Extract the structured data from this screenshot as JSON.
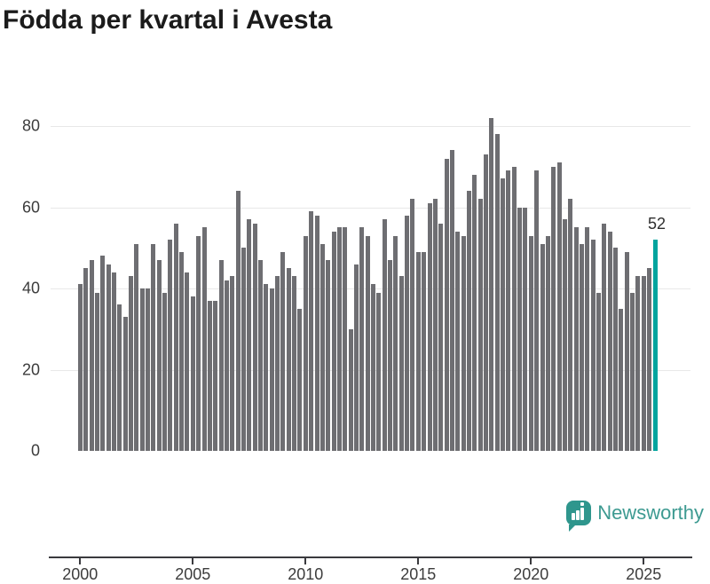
{
  "title": "Födda per kvartal i Avesta",
  "brand": {
    "name": "Newsworthy",
    "icon": "newsworthy-speech-bubble-bar-chart-icon"
  },
  "colors": {
    "bar": "#6e6e72",
    "highlight": "#00a49e",
    "grid": "#e8e8e8",
    "axis": "#3a3a3e",
    "tick_label": "#3c3c3c",
    "title": "#1b1b1b",
    "annotation": "#2e2e2e",
    "brand_teal": "#3d9a91"
  },
  "chart_data": {
    "type": "bar",
    "title": "Födda per kvartal i Avesta",
    "frequency": "quarterly",
    "start_period": "2000 Q1",
    "end_period": "2025 Q3",
    "values": [
      41,
      45,
      47,
      39,
      48,
      46,
      44,
      36,
      33,
      43,
      51,
      40,
      40,
      51,
      47,
      39,
      52,
      56,
      49,
      44,
      38,
      53,
      55,
      37,
      37,
      47,
      42,
      43,
      64,
      50,
      57,
      56,
      47,
      41,
      40,
      43,
      49,
      45,
      43,
      35,
      53,
      59,
      58,
      51,
      47,
      54,
      55,
      55,
      30,
      46,
      55,
      53,
      41,
      39,
      57,
      47,
      53,
      43,
      58,
      62,
      49,
      49,
      61,
      62,
      56,
      72,
      74,
      54,
      53,
      64,
      68,
      62,
      73,
      82,
      78,
      67,
      69,
      70,
      60,
      60,
      53,
      69,
      51,
      53,
      70,
      71,
      57,
      62,
      55,
      51,
      55,
      52,
      39,
      56,
      54,
      50,
      35,
      49,
      39,
      43,
      43,
      45,
      52
    ],
    "highlight_index": 102,
    "highlight_label": "52",
    "yticks": [
      0,
      20,
      40,
      60,
      80
    ],
    "xticks": [
      2000,
      2005,
      2010,
      2015,
      2020,
      2025
    ],
    "ylim": [
      0,
      84.8
    ],
    "grid": "horizontal-only",
    "legend": "none",
    "bar_color_default": "#6e6e72",
    "bar_color_highlight": "#00a49e"
  }
}
